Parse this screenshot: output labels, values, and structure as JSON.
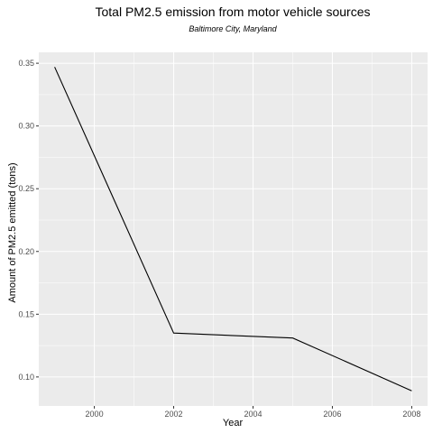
{
  "chart_data": {
    "type": "line",
    "title": "Total PM2.5 emission from motor vehicle sources",
    "subtitle": "Baltimore City, Maryland",
    "xlabel": "Year",
    "ylabel": "Amount of PM2.5 emitted (tons)",
    "x": [
      1999,
      2002,
      2005,
      2008
    ],
    "y": [
      0.347,
      0.135,
      0.131,
      0.089
    ],
    "xlim": [
      1998.6,
      2008.4
    ],
    "ylim": [
      0.0769,
      0.3587
    ],
    "x_ticks": [
      2000,
      2002,
      2004,
      2006,
      2008
    ],
    "x_tick_labels": [
      "2000",
      "2002",
      "2004",
      "2006",
      "2008"
    ],
    "y_ticks": [
      0.1,
      0.15,
      0.2,
      0.25,
      0.3,
      0.35
    ],
    "y_tick_labels": [
      "0.10",
      "0.15",
      "0.20",
      "0.25",
      "0.30",
      "0.35"
    ],
    "grid": true,
    "colors": {
      "panel": "#ebebeb",
      "grid": "#ffffff",
      "line": "#000000"
    }
  }
}
